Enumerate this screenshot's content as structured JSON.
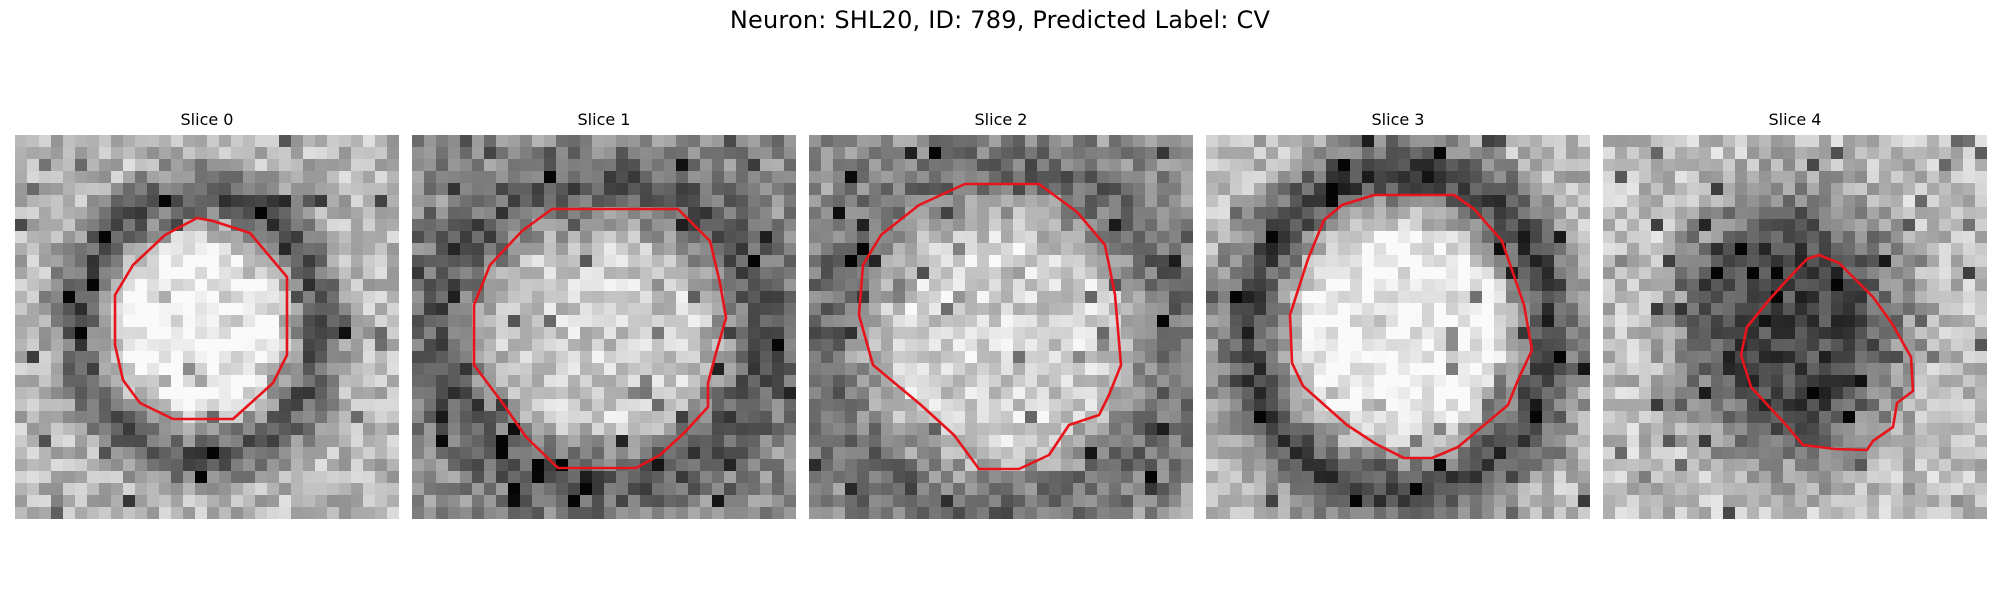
{
  "figure": {
    "title": "Neuron: SHL20, ID: 789, Predicted Label: CV"
  },
  "colors": {
    "contour": "#e8141b"
  },
  "slices": [
    {
      "title": "Slice 0",
      "seed": 11,
      "center_intensity": 0.96,
      "ring_intensity": 0.3,
      "bg_intensity": 0.72
    },
    {
      "title": "Slice 1",
      "seed": 23,
      "center_intensity": 0.8,
      "ring_intensity": 0.32,
      "bg_intensity": 0.55
    },
    {
      "title": "Slice 2",
      "seed": 37,
      "center_intensity": 0.82,
      "ring_intensity": 0.4,
      "bg_intensity": 0.58
    },
    {
      "title": "Slice 3",
      "seed": 41,
      "center_intensity": 0.95,
      "ring_intensity": 0.22,
      "bg_intensity": 0.72
    },
    {
      "title": "Slice 4",
      "seed": 53,
      "center_intensity": 0.28,
      "ring_intensity": 0.55,
      "bg_intensity": 0.75
    }
  ]
}
